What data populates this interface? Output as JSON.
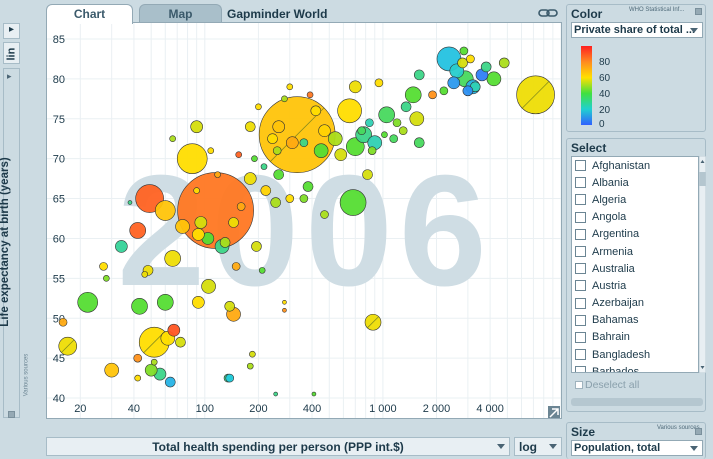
{
  "tabs": [
    {
      "label": "Chart"
    },
    {
      "label": "Map"
    }
  ],
  "app_title": "Gapminder World",
  "y_scale": "lin",
  "y_label": "Life expectancy at birth (years)",
  "y_sources": "Various sources",
  "x_label": "Total health spending per person (PPP int.$)",
  "x_scale": "log",
  "year_watermark": "2006",
  "color_panel": {
    "title": "Color",
    "source": "WHO Statistical Inf...",
    "selected": "Private share of total ...",
    "legend_ticks": [
      "80",
      "60",
      "40",
      "20",
      "0"
    ]
  },
  "select_panel": {
    "title": "Select",
    "countries": [
      "Afghanistan",
      "Albania",
      "Algeria",
      "Angola",
      "Argentina",
      "Armenia",
      "Australia",
      "Austria",
      "Azerbaijan",
      "Bahamas",
      "Bahrain",
      "Bangladesh",
      "Barbados"
    ],
    "deselect_label": "Deselect all"
  },
  "size_panel": {
    "title": "Size",
    "source": "Various sources",
    "selected": "Population, total"
  },
  "chart_data": {
    "type": "scatter",
    "title": "",
    "xlabel": "Total health spending per person (PPP int.$)",
    "ylabel": "Life expectancy at birth (years)",
    "x_scale": "log",
    "xlim": [
      13,
      10000
    ],
    "ylim": [
      37.5,
      87
    ],
    "x_ticks": [
      {
        "v": 20,
        "label": "20"
      },
      {
        "v": 40,
        "label": "40"
      },
      {
        "v": 100,
        "label": "100"
      },
      {
        "v": 200,
        "label": "200"
      },
      {
        "v": 400,
        "label": "400"
      },
      {
        "v": 1000,
        "label": "1 000"
      },
      {
        "v": 2000,
        "label": "2 000"
      },
      {
        "v": 4000,
        "label": "4 000"
      }
    ],
    "y_ticks": [
      {
        "v": 40,
        "label": "40"
      },
      {
        "v": 45,
        "label": "45"
      },
      {
        "v": 50,
        "label": "50"
      },
      {
        "v": 55,
        "label": "55"
      },
      {
        "v": 60,
        "label": "60"
      },
      {
        "v": 65,
        "label": "65"
      },
      {
        "v": 70,
        "label": "70"
      },
      {
        "v": 75,
        "label": "75"
      },
      {
        "v": 80,
        "label": "80"
      },
      {
        "v": 85,
        "label": "85"
      }
    ],
    "color_variable": "Private share of total health spending (%)",
    "color_scale": [
      {
        "v": 0,
        "color": "#3366ff"
      },
      {
        "v": 20,
        "color": "#22ccdd"
      },
      {
        "v": 40,
        "color": "#55dd33"
      },
      {
        "v": 60,
        "color": "#ffdd00"
      },
      {
        "v": 80,
        "color": "#ff7722"
      },
      {
        "v": 100,
        "color": "#ff2222"
      }
    ],
    "size_variable": "Population, total",
    "points": [
      {
        "x": 330,
        "y": 73,
        "r": 38,
        "c": 65,
        "hl": true
      },
      {
        "x": 115,
        "y": 63.5,
        "r": 38,
        "c": 80
      },
      {
        "x": 7200,
        "y": 78,
        "r": 19,
        "c": 58,
        "hl": true
      },
      {
        "x": 85,
        "y": 70,
        "r": 15,
        "c": 60
      },
      {
        "x": 52,
        "y": 47,
        "r": 15,
        "c": 60,
        "hl": true
      },
      {
        "x": 49,
        "y": 65,
        "r": 14,
        "c": 85
      },
      {
        "x": 2350,
        "y": 82.5,
        "r": 12,
        "c": 18
      },
      {
        "x": 22,
        "y": 52,
        "r": 10,
        "c": 40
      },
      {
        "x": 60,
        "y": 63.5,
        "r": 10,
        "c": 65
      },
      {
        "x": 680,
        "y": 64.5,
        "r": 13,
        "c": 40
      },
      {
        "x": 650,
        "y": 76,
        "r": 12,
        "c": 60
      },
      {
        "x": 17,
        "y": 46.5,
        "r": 9,
        "c": 58,
        "hl": true
      },
      {
        "x": 42,
        "y": 61,
        "r": 8,
        "c": 85
      },
      {
        "x": 34,
        "y": 59,
        "r": 6,
        "c": 28
      },
      {
        "x": 880,
        "y": 49.5,
        "r": 8,
        "c": 58,
        "hl": true
      },
      {
        "x": 700,
        "y": 71.5,
        "r": 9,
        "c": 40
      },
      {
        "x": 1550,
        "y": 75,
        "r": 7,
        "c": 55
      },
      {
        "x": 1480,
        "y": 78,
        "r": 8,
        "c": 40
      },
      {
        "x": 3200,
        "y": 79,
        "r": 7,
        "c": 15
      },
      {
        "x": 2900,
        "y": 80,
        "r": 8,
        "c": 35
      },
      {
        "x": 4200,
        "y": 80,
        "r": 7,
        "c": 40
      },
      {
        "x": 2600,
        "y": 81,
        "r": 7,
        "c": 22
      },
      {
        "x": 3600,
        "y": 80.5,
        "r": 6,
        "c": 5
      },
      {
        "x": 2500,
        "y": 79.5,
        "r": 6,
        "c": 10
      },
      {
        "x": 3800,
        "y": 81.5,
        "r": 5,
        "c": 30
      },
      {
        "x": 2800,
        "y": 82,
        "r": 5,
        "c": 55
      },
      {
        "x": 4800,
        "y": 82,
        "r": 5,
        "c": 50
      },
      {
        "x": 3300,
        "y": 79,
        "r": 5,
        "c": 25
      },
      {
        "x": 3000,
        "y": 78.5,
        "r": 5,
        "c": 8
      },
      {
        "x": 780,
        "y": 73,
        "r": 8,
        "c": 30
      },
      {
        "x": 1050,
        "y": 75.5,
        "r": 8,
        "c": 35
      },
      {
        "x": 900,
        "y": 72,
        "r": 7,
        "c": 25
      },
      {
        "x": 540,
        "y": 72.5,
        "r": 7,
        "c": 50
      },
      {
        "x": 580,
        "y": 70.5,
        "r": 6,
        "c": 55
      },
      {
        "x": 450,
        "y": 71,
        "r": 7,
        "c": 40
      },
      {
        "x": 380,
        "y": 66.5,
        "r": 5,
        "c": 40
      },
      {
        "x": 310,
        "y": 72,
        "r": 6,
        "c": 70
      },
      {
        "x": 260,
        "y": 74,
        "r": 6,
        "c": 65
      },
      {
        "x": 240,
        "y": 72.5,
        "r": 5,
        "c": 60
      },
      {
        "x": 420,
        "y": 76,
        "r": 5,
        "c": 60
      },
      {
        "x": 470,
        "y": 73.5,
        "r": 6,
        "c": 62
      },
      {
        "x": 180,
        "y": 67.5,
        "r": 6,
        "c": 58
      },
      {
        "x": 260,
        "y": 68,
        "r": 5,
        "c": 40
      },
      {
        "x": 220,
        "y": 66,
        "r": 5,
        "c": 62
      },
      {
        "x": 60,
        "y": 52,
        "r": 8,
        "c": 40
      },
      {
        "x": 105,
        "y": 54,
        "r": 7,
        "c": 55
      },
      {
        "x": 92,
        "y": 52,
        "r": 6,
        "c": 60
      },
      {
        "x": 138,
        "y": 51.5,
        "r": 5,
        "c": 55
      },
      {
        "x": 66,
        "y": 57.5,
        "r": 8,
        "c": 58
      },
      {
        "x": 125,
        "y": 59,
        "r": 7,
        "c": 30
      },
      {
        "x": 104,
        "y": 60,
        "r": 6,
        "c": 40
      },
      {
        "x": 92,
        "y": 60.5,
        "r": 6,
        "c": 60
      },
      {
        "x": 75,
        "y": 61.5,
        "r": 7,
        "c": 65
      },
      {
        "x": 95,
        "y": 62,
        "r": 6,
        "c": 55
      },
      {
        "x": 90,
        "y": 74,
        "r": 6,
        "c": 55
      },
      {
        "x": 180,
        "y": 74,
        "r": 5,
        "c": 58
      },
      {
        "x": 145,
        "y": 62,
        "r": 5,
        "c": 58
      },
      {
        "x": 130,
        "y": 59.5,
        "r": 5,
        "c": 50
      },
      {
        "x": 62,
        "y": 47.5,
        "r": 7,
        "c": 60
      },
      {
        "x": 67,
        "y": 48.5,
        "r": 6,
        "c": 88
      },
      {
        "x": 73,
        "y": 47,
        "r": 5,
        "c": 55
      },
      {
        "x": 56,
        "y": 43,
        "r": 6,
        "c": 30
      },
      {
        "x": 64,
        "y": 42,
        "r": 5,
        "c": 15
      },
      {
        "x": 50,
        "y": 43.5,
        "r": 6,
        "c": 45
      },
      {
        "x": 30,
        "y": 43.5,
        "r": 7,
        "c": 65
      },
      {
        "x": 42,
        "y": 45,
        "r": 4,
        "c": 75
      },
      {
        "x": 16,
        "y": 49.5,
        "r": 4,
        "c": 70
      },
      {
        "x": 27,
        "y": 56.5,
        "r": 4,
        "c": 60
      },
      {
        "x": 28,
        "y": 55,
        "r": 3,
        "c": 45
      },
      {
        "x": 48,
        "y": 56,
        "r": 5,
        "c": 58
      },
      {
        "x": 43,
        "y": 51.5,
        "r": 8,
        "c": 40
      },
      {
        "x": 145,
        "y": 50.5,
        "r": 7,
        "c": 70
      },
      {
        "x": 180,
        "y": 44,
        "r": 3,
        "c": 50
      },
      {
        "x": 185,
        "y": 45.5,
        "r": 3,
        "c": 55
      },
      {
        "x": 135,
        "y": 42.5,
        "r": 4,
        "c": 30
      },
      {
        "x": 52,
        "y": 44.5,
        "r": 3,
        "c": 50
      },
      {
        "x": 42,
        "y": 42.5,
        "r": 3,
        "c": 60
      },
      {
        "x": 138,
        "y": 42.5,
        "r": 4,
        "c": 20
      },
      {
        "x": 46,
        "y": 55.5,
        "r": 3,
        "c": 58
      },
      {
        "x": 280,
        "y": 52,
        "r": 2,
        "c": 60
      },
      {
        "x": 250,
        "y": 40.5,
        "r": 2,
        "c": 30
      },
      {
        "x": 410,
        "y": 40.5,
        "r": 2,
        "c": 40
      },
      {
        "x": 280,
        "y": 51,
        "r": 2,
        "c": 75
      },
      {
        "x": 150,
        "y": 56.5,
        "r": 4,
        "c": 70
      },
      {
        "x": 195,
        "y": 59,
        "r": 5,
        "c": 55
      },
      {
        "x": 470,
        "y": 63,
        "r": 4,
        "c": 50
      },
      {
        "x": 210,
        "y": 56,
        "r": 3,
        "c": 40
      },
      {
        "x": 160,
        "y": 64,
        "r": 4,
        "c": 70
      },
      {
        "x": 250,
        "y": 64.5,
        "r": 5,
        "c": 50
      },
      {
        "x": 300,
        "y": 65,
        "r": 4,
        "c": 60
      },
      {
        "x": 360,
        "y": 65,
        "r": 4,
        "c": 45
      },
      {
        "x": 700,
        "y": 79,
        "r": 6,
        "c": 58
      },
      {
        "x": 950,
        "y": 79.5,
        "r": 4,
        "c": 60
      },
      {
        "x": 1600,
        "y": 80.5,
        "r": 5,
        "c": 30
      },
      {
        "x": 1350,
        "y": 76.5,
        "r": 5,
        "c": 30
      },
      {
        "x": 1900,
        "y": 78,
        "r": 4,
        "c": 75
      },
      {
        "x": 1600,
        "y": 72,
        "r": 5,
        "c": 35
      },
      {
        "x": 2200,
        "y": 78.5,
        "r": 4,
        "c": 40
      },
      {
        "x": 1200,
        "y": 74.5,
        "r": 4,
        "c": 45
      },
      {
        "x": 1300,
        "y": 73.5,
        "r": 4,
        "c": 50
      },
      {
        "x": 1150,
        "y": 72.5,
        "r": 4,
        "c": 35
      },
      {
        "x": 870,
        "y": 71,
        "r": 4,
        "c": 45
      },
      {
        "x": 820,
        "y": 68,
        "r": 5,
        "c": 55
      },
      {
        "x": 760,
        "y": 73.5,
        "r": 4,
        "c": 35
      },
      {
        "x": 840,
        "y": 74.5,
        "r": 4,
        "c": 25
      },
      {
        "x": 1020,
        "y": 73,
        "r": 3,
        "c": 40
      },
      {
        "x": 200,
        "y": 76.5,
        "r": 3,
        "c": 60
      },
      {
        "x": 280,
        "y": 77.5,
        "r": 3,
        "c": 50
      },
      {
        "x": 300,
        "y": 79,
        "r": 3,
        "c": 60
      },
      {
        "x": 390,
        "y": 78,
        "r": 3,
        "c": 80
      },
      {
        "x": 360,
        "y": 72,
        "r": 4,
        "c": 30
      },
      {
        "x": 255,
        "y": 71,
        "r": 4,
        "c": 50
      },
      {
        "x": 190,
        "y": 70,
        "r": 3,
        "c": 40
      },
      {
        "x": 155,
        "y": 70.5,
        "r": 3,
        "c": 85
      },
      {
        "x": 215,
        "y": 69,
        "r": 3,
        "c": 30
      },
      {
        "x": 118,
        "y": 68,
        "r": 3,
        "c": 70
      },
      {
        "x": 90,
        "y": 66,
        "r": 3,
        "c": 60
      },
      {
        "x": 38,
        "y": 64.5,
        "r": 2,
        "c": 30
      },
      {
        "x": 66,
        "y": 72.5,
        "r": 3,
        "c": 50
      },
      {
        "x": 108,
        "y": 71,
        "r": 3,
        "c": 60
      },
      {
        "x": 2850,
        "y": 83.5,
        "r": 4,
        "c": 40
      },
      {
        "x": 3100,
        "y": 82.5,
        "r": 4,
        "c": 60
      }
    ]
  },
  "colors": {
    "background": "#ccdbe2",
    "plot_bg": "#ffffff",
    "watermark": "#cfdde4",
    "grid": "#e9eff2",
    "text": "#1d3a4a"
  }
}
